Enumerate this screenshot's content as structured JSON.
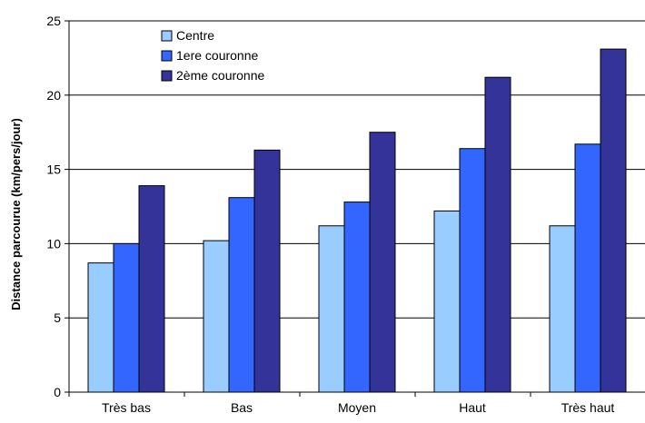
{
  "chart_data": {
    "type": "bar",
    "title": "",
    "xlabel": "",
    "ylabel": "Distance parcourue (km/pers/jour)",
    "categories": [
      "Très bas",
      "Bas",
      "Moyen",
      "Haut",
      "Très haut"
    ],
    "series": [
      {
        "name": "Centre",
        "color": "#99ccff",
        "values": [
          8.7,
          10.2,
          11.2,
          12.2,
          11.2
        ]
      },
      {
        "name": "1ere couronne",
        "color": "#3366ff",
        "values": [
          10.0,
          13.1,
          12.8,
          16.4,
          16.7
        ]
      },
      {
        "name": "2ème couronne",
        "color": "#333399",
        "values": [
          13.9,
          16.3,
          17.5,
          21.2,
          23.1
        ]
      }
    ],
    "ylim": [
      0,
      25
    ],
    "yticks": [
      0,
      5,
      10,
      15,
      20,
      25
    ],
    "grid": true,
    "legend_position": "top-left"
  }
}
